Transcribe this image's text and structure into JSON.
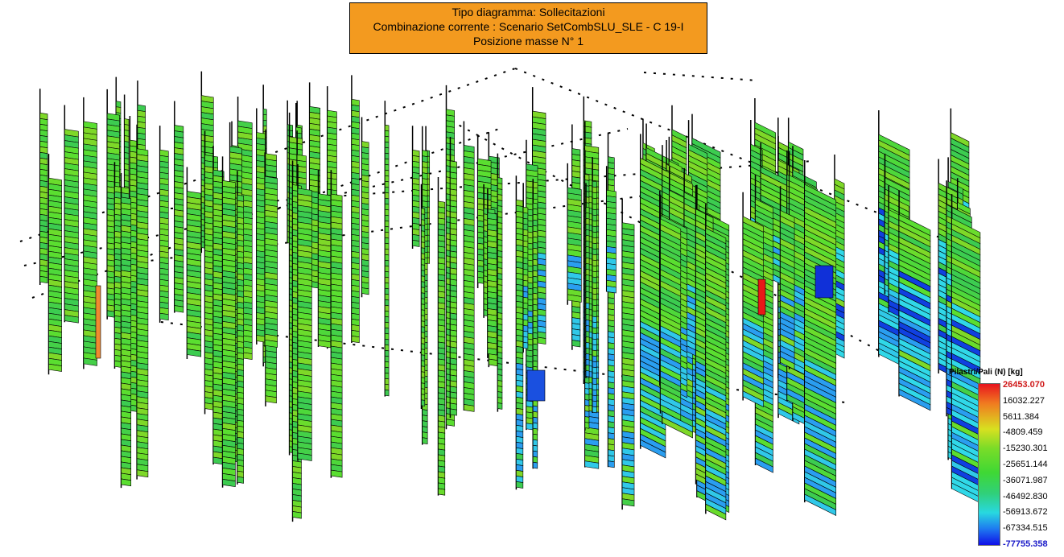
{
  "header": {
    "lines": [
      "Tipo diagramma: Sollecitazioni",
      "Combinazione corrente : Scenario SetCombSLU_SLE - C 19-I",
      "Posizione masse N° 1"
    ]
  },
  "legend": {
    "title": "Pilastri/Pali (N) [kg]",
    "labels": [
      "26453.070",
      "16032.227",
      "5611.384",
      "-4809.459",
      "-15230.301",
      "-25651.144",
      "-36071.987",
      "-46492.830",
      "-56913.672",
      "-67334.515",
      "-77755.358"
    ]
  }
}
